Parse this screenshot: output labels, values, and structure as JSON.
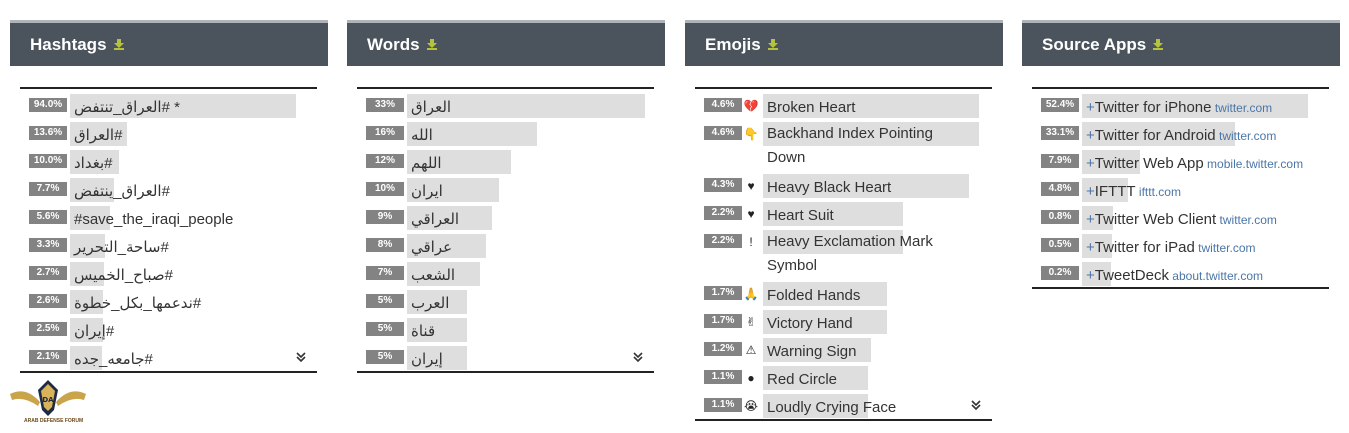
{
  "panels": {
    "hashtags": {
      "title": "Hashtags",
      "rows": [
        {
          "pct": "94.0%",
          "fill": 94.0,
          "label": "العراق_تنتفض# *"
        },
        {
          "pct": "13.6%",
          "fill": 13.6,
          "label": "العراق#"
        },
        {
          "pct": "10.0%",
          "fill": 10.0,
          "label": "بغداد#"
        },
        {
          "pct": "7.7%",
          "fill": 7.7,
          "label": "العراق_ينتفض#"
        },
        {
          "pct": "5.6%",
          "fill": 5.6,
          "label": "#save_the_iraqi_people"
        },
        {
          "pct": "3.3%",
          "fill": 3.3,
          "label": "ساحة_التحرير#"
        },
        {
          "pct": "2.7%",
          "fill": 2.7,
          "label": "صباح_الخميس#"
        },
        {
          "pct": "2.6%",
          "fill": 2.6,
          "label": "ندعمها_بكل_خطوة#"
        },
        {
          "pct": "2.5%",
          "fill": 2.5,
          "label": "إيران#"
        },
        {
          "pct": "2.1%",
          "fill": 2.1,
          "label": "جامعه_جده#"
        }
      ]
    },
    "words": {
      "title": "Words",
      "rows": [
        {
          "pct": "33%",
          "fill": 33,
          "label": "العراق"
        },
        {
          "pct": "16%",
          "fill": 16,
          "label": "الله"
        },
        {
          "pct": "12%",
          "fill": 12,
          "label": "اللهم"
        },
        {
          "pct": "10%",
          "fill": 10,
          "label": "ايران"
        },
        {
          "pct": "9%",
          "fill": 9,
          "label": "العراقي"
        },
        {
          "pct": "8%",
          "fill": 8,
          "label": "عراقي"
        },
        {
          "pct": "7%",
          "fill": 7,
          "label": "الشعب"
        },
        {
          "pct": "5%",
          "fill": 5,
          "label": "العرب"
        },
        {
          "pct": "5%",
          "fill": 5,
          "label": "قناة"
        },
        {
          "pct": "5%",
          "fill": 5,
          "label": "إيران"
        }
      ]
    },
    "emojis": {
      "title": "Emojis",
      "rows": [
        {
          "pct": "4.6%",
          "fill": 4.6,
          "symbol": "💔",
          "label": "Broken Heart"
        },
        {
          "pct": "4.6%",
          "fill": 4.6,
          "symbol": "👇",
          "label": "Backhand Index Pointing Down"
        },
        {
          "pct": "4.3%",
          "fill": 4.3,
          "symbol": "♥",
          "label": "Heavy Black Heart"
        },
        {
          "pct": "2.2%",
          "fill": 2.2,
          "symbol": "♥",
          "label": "Heart Suit"
        },
        {
          "pct": "2.2%",
          "fill": 2.2,
          "symbol": "!",
          "label": "Heavy Exclamation Mark Symbol"
        },
        {
          "pct": "1.7%",
          "fill": 1.7,
          "symbol": "🙏",
          "label": "Folded Hands"
        },
        {
          "pct": "1.7%",
          "fill": 1.7,
          "symbol": "✌",
          "label": "Victory Hand"
        },
        {
          "pct": "1.2%",
          "fill": 1.2,
          "symbol": "⚠",
          "label": "Warning Sign"
        },
        {
          "pct": "1.1%",
          "fill": 1.1,
          "symbol": "●",
          "label": "Red Circle"
        },
        {
          "pct": "1.1%",
          "fill": 1.1,
          "symbol": "😭",
          "label": "Loudly Crying Face"
        }
      ]
    },
    "source_apps": {
      "title": "Source Apps",
      "rows": [
        {
          "pct": "52.4%",
          "fill": 52.4,
          "plus": "+",
          "label": "Twitter for iPhone",
          "domain": "twitter.com"
        },
        {
          "pct": "33.1%",
          "fill": 33.1,
          "plus": "+",
          "label": "Twitter for Android",
          "domain": "twitter.com"
        },
        {
          "pct": "7.9%",
          "fill": 7.9,
          "plus": "+",
          "label": "Twitter Web App",
          "domain": "mobile.twitter.com"
        },
        {
          "pct": "4.8%",
          "fill": 4.8,
          "plus": "+",
          "label": "IFTTT",
          "domain": "ifttt.com"
        },
        {
          "pct": "0.8%",
          "fill": 0.8,
          "plus": "+",
          "label": "Twitter Web Client",
          "domain": "twitter.com"
        },
        {
          "pct": "0.5%",
          "fill": 0.5,
          "plus": "+",
          "label": "Twitter for iPad",
          "domain": "twitter.com"
        },
        {
          "pct": "0.2%",
          "fill": 0.2,
          "plus": "+",
          "label": "TweetDeck",
          "domain": "about.twitter.com"
        }
      ]
    }
  },
  "logo": {
    "text": "ARAB DEFENSE FORUM",
    "initials": "DA"
  },
  "colors": {
    "header_bg": "#4b545d",
    "badge_bg": "#838383",
    "bar_bg": "#dedede",
    "download_icon": "#b5c33a",
    "link": "#4a76a8"
  }
}
